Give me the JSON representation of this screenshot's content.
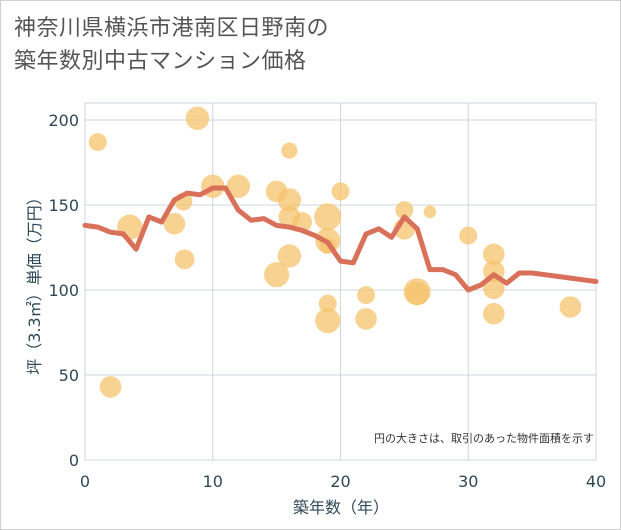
{
  "title_line1": "神奈川県横浜市港南区日野南の",
  "title_line2": "築年数別中古マンション価格",
  "chart_data": {
    "type": "scatter",
    "title": "神奈川県横浜市港南区日野南の築年数別中古マンション価格",
    "xlabel": "築年数（年）",
    "ylabel": "坪（3.3㎡）単価（万円）",
    "xlim": [
      0,
      40
    ],
    "ylim": [
      0,
      210
    ],
    "xticks": [
      "0",
      "10",
      "20",
      "30",
      "40"
    ],
    "yticks": [
      "0",
      "50",
      "100",
      "150",
      "200"
    ],
    "note": "円の大きさは、取引のあった物件面積を示す",
    "grid": true,
    "colors": {
      "bubble": "#f5c36b",
      "line": "#d9705a"
    },
    "bubbles": [
      {
        "x": 1,
        "y": 187,
        "size": 1.0
      },
      {
        "x": 2,
        "y": 43,
        "size": 1.2
      },
      {
        "x": 3.5,
        "y": 137,
        "size": 1.4
      },
      {
        "x": 7,
        "y": 139,
        "size": 1.2
      },
      {
        "x": 7.7,
        "y": 152,
        "size": 1.0
      },
      {
        "x": 7.8,
        "y": 118,
        "size": 1.1
      },
      {
        "x": 8.8,
        "y": 201,
        "size": 1.3
      },
      {
        "x": 10,
        "y": 161,
        "size": 1.3
      },
      {
        "x": 12,
        "y": 161,
        "size": 1.3
      },
      {
        "x": 15,
        "y": 158,
        "size": 1.2
      },
      {
        "x": 15,
        "y": 109,
        "size": 1.4
      },
      {
        "x": 16,
        "y": 182,
        "size": 0.9
      },
      {
        "x": 16,
        "y": 153,
        "size": 1.3
      },
      {
        "x": 16,
        "y": 143,
        "size": 1.2
      },
      {
        "x": 16,
        "y": 120,
        "size": 1.3
      },
      {
        "x": 17,
        "y": 140,
        "size": 1.1
      },
      {
        "x": 19,
        "y": 143,
        "size": 1.5
      },
      {
        "x": 19,
        "y": 129,
        "size": 1.4
      },
      {
        "x": 19,
        "y": 126,
        "size": 0.9
      },
      {
        "x": 19,
        "y": 92,
        "size": 1.0
      },
      {
        "x": 19,
        "y": 82,
        "size": 1.4
      },
      {
        "x": 20,
        "y": 158,
        "size": 1.0
      },
      {
        "x": 22,
        "y": 97,
        "size": 1.0
      },
      {
        "x": 22,
        "y": 83,
        "size": 1.2
      },
      {
        "x": 25,
        "y": 147,
        "size": 1.0
      },
      {
        "x": 25,
        "y": 136,
        "size": 1.2
      },
      {
        "x": 26,
        "y": 99,
        "size": 1.5
      },
      {
        "x": 26,
        "y": 98,
        "size": 1.3
      },
      {
        "x": 27,
        "y": 146,
        "size": 0.7
      },
      {
        "x": 30,
        "y": 132,
        "size": 1.0
      },
      {
        "x": 32,
        "y": 121,
        "size": 1.2
      },
      {
        "x": 32,
        "y": 111,
        "size": 1.2
      },
      {
        "x": 32,
        "y": 101,
        "size": 1.2
      },
      {
        "x": 32,
        "y": 86,
        "size": 1.2
      },
      {
        "x": 38,
        "y": 90,
        "size": 1.2
      }
    ],
    "trend": {
      "x": [
        0,
        1,
        2,
        3,
        4,
        5,
        6,
        7,
        8,
        9,
        10,
        11,
        12,
        13,
        14,
        15,
        16,
        17,
        18,
        19,
        20,
        21,
        22,
        23,
        24,
        25,
        26,
        27,
        28,
        29,
        30,
        31,
        32,
        33,
        34,
        35,
        36,
        37,
        38,
        39,
        40
      ],
      "y": [
        138,
        137,
        134,
        133,
        124,
        143,
        140,
        153,
        157,
        156,
        160,
        160,
        147,
        141,
        142,
        138,
        137,
        135,
        132,
        128,
        117,
        116,
        133,
        136,
        131,
        143,
        136,
        112,
        112,
        109,
        100,
        103,
        109,
        104,
        110,
        110,
        109,
        108,
        107,
        106,
        105
      ]
    }
  }
}
